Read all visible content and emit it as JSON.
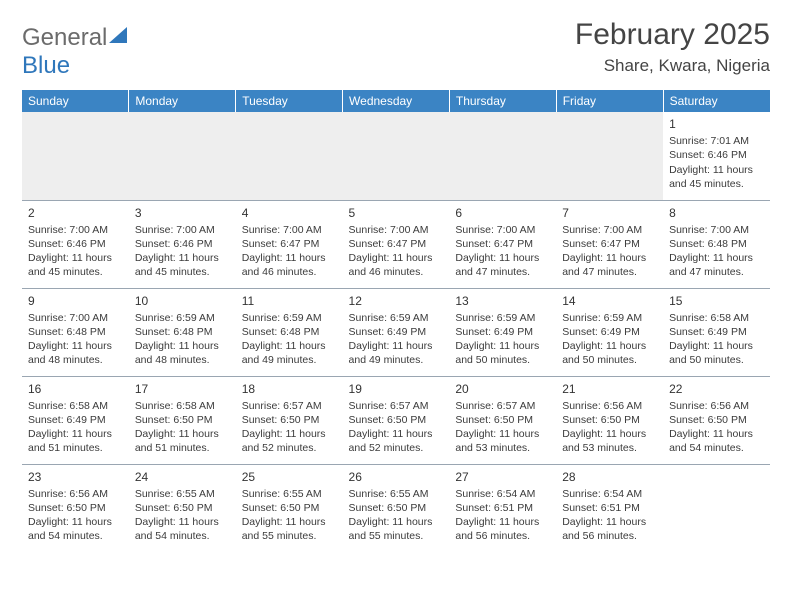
{
  "logo": {
    "text_gray": "General",
    "text_blue": "Blue"
  },
  "header": {
    "month_title": "February 2025",
    "location": "Share, Kwara, Nigeria"
  },
  "calendar": {
    "header_bg": "#3b84c4",
    "header_fg": "#ffffff",
    "border_color": "#9aa6b2",
    "empty_bg": "#eeeeee",
    "weekdays": [
      "Sunday",
      "Monday",
      "Tuesday",
      "Wednesday",
      "Thursday",
      "Friday",
      "Saturday"
    ],
    "weeks": [
      [
        null,
        null,
        null,
        null,
        null,
        null,
        {
          "day": "1",
          "sunrise": "7:01 AM",
          "sunset": "6:46 PM",
          "daylight": "11 hours and 45 minutes."
        }
      ],
      [
        {
          "day": "2",
          "sunrise": "7:00 AM",
          "sunset": "6:46 PM",
          "daylight": "11 hours and 45 minutes."
        },
        {
          "day": "3",
          "sunrise": "7:00 AM",
          "sunset": "6:46 PM",
          "daylight": "11 hours and 45 minutes."
        },
        {
          "day": "4",
          "sunrise": "7:00 AM",
          "sunset": "6:47 PM",
          "daylight": "11 hours and 46 minutes."
        },
        {
          "day": "5",
          "sunrise": "7:00 AM",
          "sunset": "6:47 PM",
          "daylight": "11 hours and 46 minutes."
        },
        {
          "day": "6",
          "sunrise": "7:00 AM",
          "sunset": "6:47 PM",
          "daylight": "11 hours and 47 minutes."
        },
        {
          "day": "7",
          "sunrise": "7:00 AM",
          "sunset": "6:47 PM",
          "daylight": "11 hours and 47 minutes."
        },
        {
          "day": "8",
          "sunrise": "7:00 AM",
          "sunset": "6:48 PM",
          "daylight": "11 hours and 47 minutes."
        }
      ],
      [
        {
          "day": "9",
          "sunrise": "7:00 AM",
          "sunset": "6:48 PM",
          "daylight": "11 hours and 48 minutes."
        },
        {
          "day": "10",
          "sunrise": "6:59 AM",
          "sunset": "6:48 PM",
          "daylight": "11 hours and 48 minutes."
        },
        {
          "day": "11",
          "sunrise": "6:59 AM",
          "sunset": "6:48 PM",
          "daylight": "11 hours and 49 minutes."
        },
        {
          "day": "12",
          "sunrise": "6:59 AM",
          "sunset": "6:49 PM",
          "daylight": "11 hours and 49 minutes."
        },
        {
          "day": "13",
          "sunrise": "6:59 AM",
          "sunset": "6:49 PM",
          "daylight": "11 hours and 50 minutes."
        },
        {
          "day": "14",
          "sunrise": "6:59 AM",
          "sunset": "6:49 PM",
          "daylight": "11 hours and 50 minutes."
        },
        {
          "day": "15",
          "sunrise": "6:58 AM",
          "sunset": "6:49 PM",
          "daylight": "11 hours and 50 minutes."
        }
      ],
      [
        {
          "day": "16",
          "sunrise": "6:58 AM",
          "sunset": "6:49 PM",
          "daylight": "11 hours and 51 minutes."
        },
        {
          "day": "17",
          "sunrise": "6:58 AM",
          "sunset": "6:50 PM",
          "daylight": "11 hours and 51 minutes."
        },
        {
          "day": "18",
          "sunrise": "6:57 AM",
          "sunset": "6:50 PM",
          "daylight": "11 hours and 52 minutes."
        },
        {
          "day": "19",
          "sunrise": "6:57 AM",
          "sunset": "6:50 PM",
          "daylight": "11 hours and 52 minutes."
        },
        {
          "day": "20",
          "sunrise": "6:57 AM",
          "sunset": "6:50 PM",
          "daylight": "11 hours and 53 minutes."
        },
        {
          "day": "21",
          "sunrise": "6:56 AM",
          "sunset": "6:50 PM",
          "daylight": "11 hours and 53 minutes."
        },
        {
          "day": "22",
          "sunrise": "6:56 AM",
          "sunset": "6:50 PM",
          "daylight": "11 hours and 54 minutes."
        }
      ],
      [
        {
          "day": "23",
          "sunrise": "6:56 AM",
          "sunset": "6:50 PM",
          "daylight": "11 hours and 54 minutes."
        },
        {
          "day": "24",
          "sunrise": "6:55 AM",
          "sunset": "6:50 PM",
          "daylight": "11 hours and 54 minutes."
        },
        {
          "day": "25",
          "sunrise": "6:55 AM",
          "sunset": "6:50 PM",
          "daylight": "11 hours and 55 minutes."
        },
        {
          "day": "26",
          "sunrise": "6:55 AM",
          "sunset": "6:50 PM",
          "daylight": "11 hours and 55 minutes."
        },
        {
          "day": "27",
          "sunrise": "6:54 AM",
          "sunset": "6:51 PM",
          "daylight": "11 hours and 56 minutes."
        },
        {
          "day": "28",
          "sunrise": "6:54 AM",
          "sunset": "6:51 PM",
          "daylight": "11 hours and 56 minutes."
        },
        null
      ]
    ]
  }
}
